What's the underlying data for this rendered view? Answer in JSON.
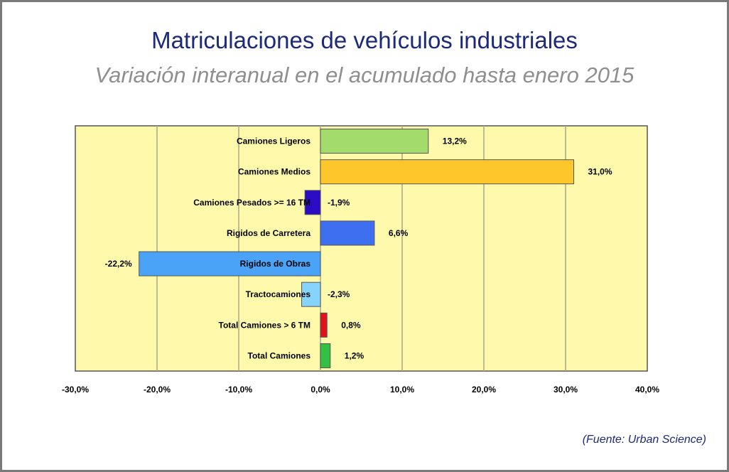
{
  "title": "Matriculaciones de vehículos industriales",
  "subtitle": "Variación interanual en el acumulado hasta enero 2015",
  "source": "(Fuente: Urban Science)",
  "chart_data": {
    "type": "bar",
    "orientation": "horizontal",
    "categories": [
      "Camiones Ligeros",
      "Camiones Medios",
      "Camiones Pesados >= 16 TM",
      "Rigidos de Carretera",
      "Rigidos de Obras",
      "Tractocamiones",
      "Total Camiones  > 6 TM",
      "Total Camiones"
    ],
    "values": [
      13.2,
      31.0,
      -1.9,
      6.6,
      -22.2,
      -2.3,
      0.8,
      1.2
    ],
    "value_labels": [
      "13,2%",
      "31,0%",
      "-1,9%",
      "6,6%",
      "-22,2%",
      "-2,3%",
      "0,8%",
      "1,2%"
    ],
    "colors": [
      "#a3dc6c",
      "#fdc72c",
      "#2b0cc4",
      "#3d6ff0",
      "#4aa3f7",
      "#86d3fb",
      "#e0121c",
      "#33c043"
    ],
    "xlim": [
      -30,
      40
    ],
    "xticks": [
      -30,
      -20,
      -10,
      0,
      10,
      20,
      30,
      40
    ],
    "xtick_labels": [
      "-30,0%",
      "-20,0%",
      "-10,0%",
      "0,0%",
      "10,0%",
      "20,0%",
      "30,0%",
      "40,0%"
    ],
    "grid": true,
    "plot_background": "#fffaab"
  }
}
